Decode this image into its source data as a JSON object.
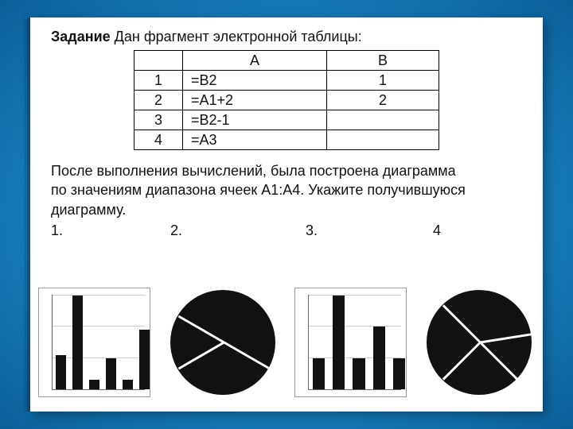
{
  "title_bold": "Задание",
  "title_rest": " Дан фрагмент электронной таблицы:",
  "table": {
    "headers": [
      "",
      "A",
      "B"
    ],
    "rows": [
      [
        "1",
        "=B2",
        "1"
      ],
      [
        "2",
        "=A1+2",
        "2"
      ],
      [
        "3",
        "=B2-1",
        ""
      ],
      [
        "4",
        "=A3",
        ""
      ]
    ],
    "border_color": "#000000",
    "fontsize": 18
  },
  "paragraph_l1": "После выполнения вычислений, была построена диаграмма",
  "paragraph_l2": "по значениям диапазона ячеек А1:А4. Укажите получившуюся",
  "paragraph_l3": "диаграмму.",
  "options": {
    "o1": "1.",
    "o2": "2.",
    "o3": "3.",
    "o4": "4"
  },
  "chart1": {
    "type": "bar",
    "values": [
      1.1,
      3.0,
      0.3,
      1.0,
      0.3,
      1.9
    ],
    "ylim": [
      0,
      3.2
    ],
    "yticks": [
      0,
      1,
      2,
      3
    ],
    "bar_color": "#111111",
    "grid_color": "#cccccc",
    "axis_color": "#666666",
    "bar_width": 0.6
  },
  "chart2": {
    "type": "pie",
    "slices": [
      33.3,
      16.7,
      50.0
    ],
    "start_angle": -60,
    "colors": [
      "#111111",
      "#111111",
      "#111111"
    ],
    "sep_color": "#ffffff",
    "sep_width": 3
  },
  "chart3": {
    "type": "bar",
    "values": [
      1.0,
      3.0,
      1.0,
      2.0,
      1.0
    ],
    "ylim": [
      0,
      3.2
    ],
    "yticks": [
      0,
      1,
      2,
      3
    ],
    "bar_color": "#111111",
    "grid_color": "#cccccc",
    "axis_color": "#666666",
    "bar_width": 0.6
  },
  "chart4": {
    "type": "pie",
    "slices": [
      25.0,
      25.0,
      35.0,
      15.0
    ],
    "start_angle": -45,
    "colors": [
      "#111111",
      "#111111",
      "#111111",
      "#111111"
    ],
    "sep_color": "#ffffff",
    "sep_width": 3
  },
  "colors": {
    "page_bg": "#ffffff",
    "text": "#111111",
    "slide_shadow": "rgba(0,0,0,0.35)"
  }
}
